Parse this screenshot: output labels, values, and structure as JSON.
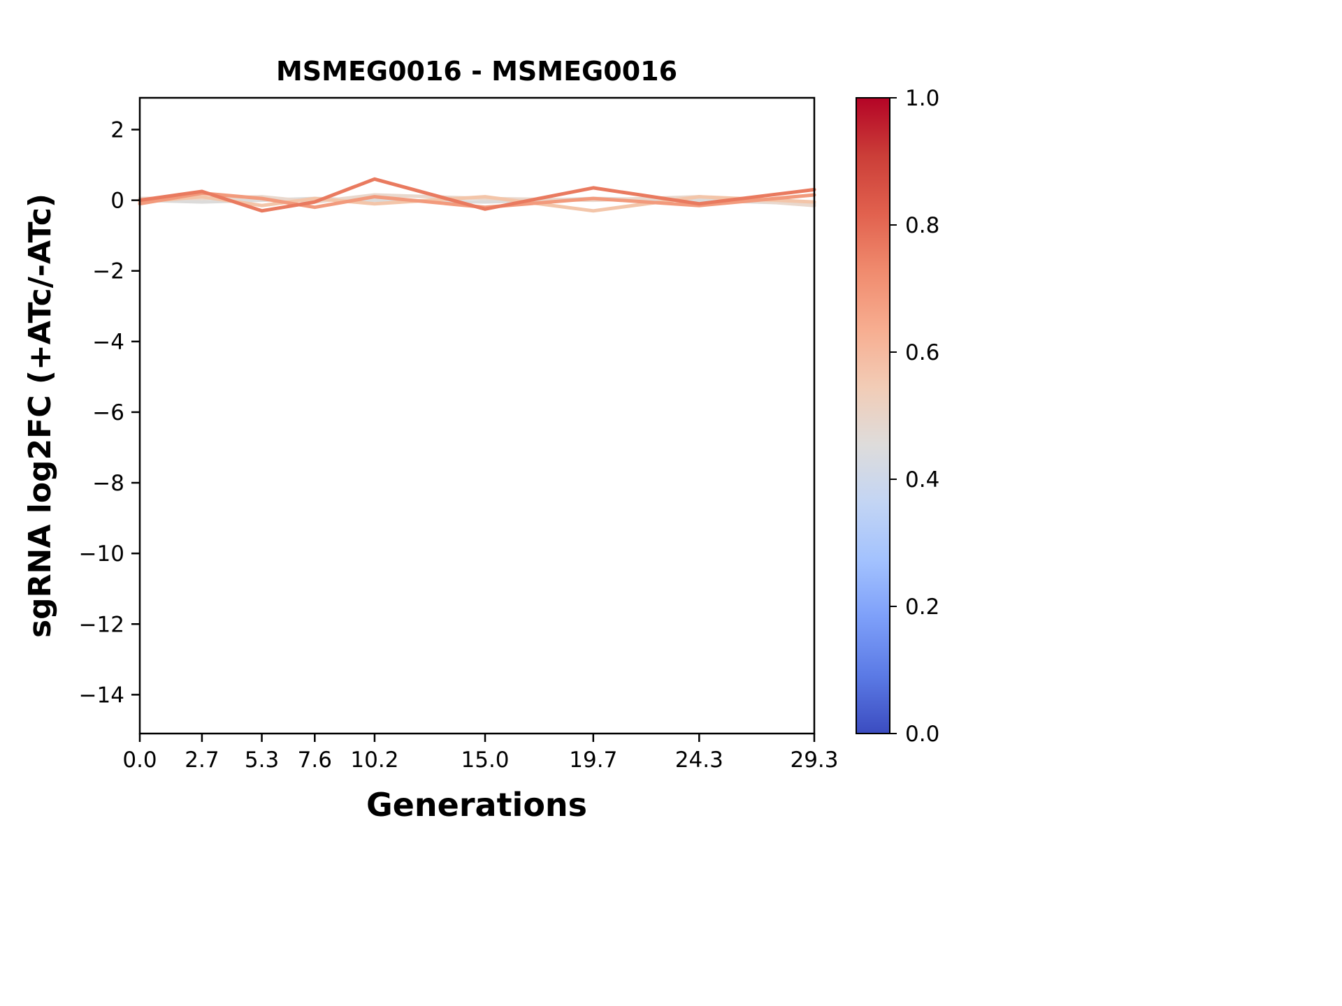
{
  "page": {
    "background_color": "#ffffff",
    "axis_color": "#000000"
  },
  "chart_data": {
    "type": "line",
    "title": "MSMEG0016 - MSMEG0016",
    "xlabel": "Generations",
    "ylabel": "sgRNA log2FC (+ATc/-ATc)",
    "x": [
      0.0,
      2.7,
      5.3,
      7.6,
      10.2,
      15.0,
      19.7,
      24.3,
      29.3
    ],
    "xtick_labels": [
      "0.0",
      "2.7",
      "5.3",
      "7.6",
      "10.2",
      "15.0",
      "19.7",
      "24.3",
      "29.3"
    ],
    "ytick_values": [
      2,
      0,
      -2,
      -4,
      -6,
      -8,
      -10,
      -12,
      -14
    ],
    "xlim": [
      0,
      29.3
    ],
    "ylim": [
      -15.1,
      2.9
    ],
    "grid": false,
    "legend": "none",
    "series": [
      {
        "color_value": 0.5,
        "color": "#dcdbda",
        "values": [
          0.0,
          -0.05,
          0.0,
          0.05,
          0.0,
          -0.05,
          0.05,
          0.0,
          -0.1
        ]
      },
      {
        "color_value": 0.56,
        "color": "#e9d8cd",
        "values": [
          0.05,
          0.05,
          0.1,
          -0.05,
          0.15,
          0.05,
          0.0,
          0.1,
          -0.15
        ]
      },
      {
        "color_value": 0.62,
        "color": "#f3c5a9",
        "values": [
          -0.05,
          0.1,
          -0.15,
          0.05,
          -0.1,
          0.1,
          -0.3,
          0.1,
          -0.05
        ]
      },
      {
        "color_value": 0.74,
        "color": "#f29a7c",
        "values": [
          -0.1,
          0.2,
          0.05,
          -0.2,
          0.1,
          -0.2,
          0.05,
          -0.15,
          0.15
        ]
      },
      {
        "color_value": 0.82,
        "color": "#e97a5f",
        "values": [
          0.0,
          0.25,
          -0.3,
          -0.05,
          0.6,
          -0.25,
          0.35,
          -0.1,
          0.3
        ]
      }
    ],
    "colorbar": {
      "orientation": "vertical",
      "range": [
        0.0,
        1.0
      ],
      "ticks": [
        "1.0",
        "0.8",
        "0.6",
        "0.4",
        "0.2",
        "0.0"
      ],
      "colormap": "coolwarm",
      "gradient_top_to_bottom": [
        "#b40426",
        "#cb3e38",
        "#e1614e",
        "#f08b6e",
        "#f7ad90",
        "#f2ccb6",
        "#dedcdb",
        "#c3d5f4",
        "#a3c2fe",
        "#7d9ff9",
        "#5b7ae5",
        "#3b4cc0"
      ]
    }
  }
}
